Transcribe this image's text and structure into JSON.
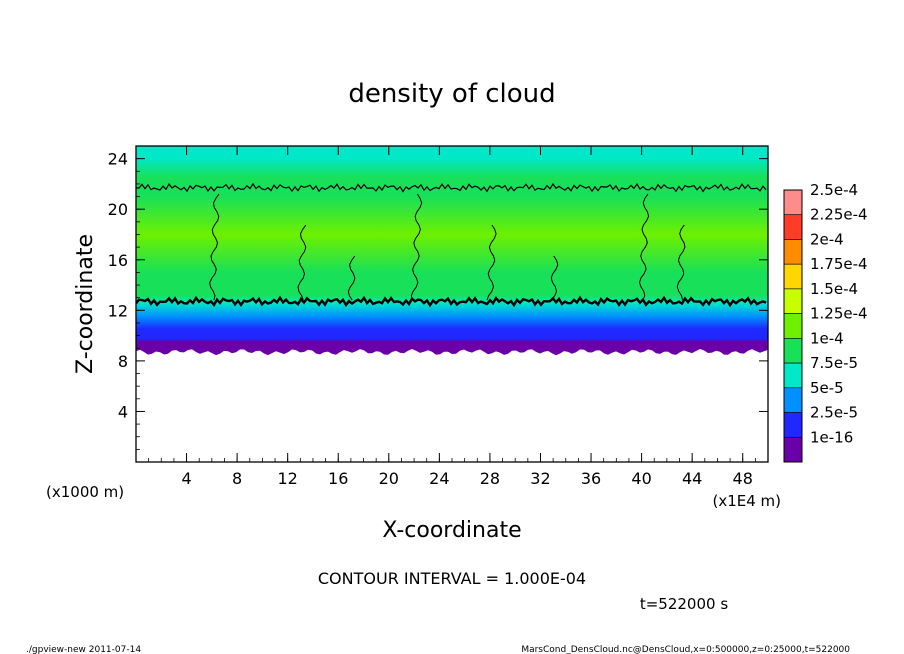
{
  "chart_data": {
    "type": "heatmap",
    "title": "density of cloud",
    "xlabel": "X-coordinate",
    "ylabel": "Z-coordinate",
    "x_unit": "(x1E4 m)",
    "y_unit": "(x1000 m)",
    "xlim": [
      0,
      50
    ],
    "ylim": [
      0,
      25
    ],
    "x_ticks": [
      "4",
      "8",
      "12",
      "16",
      "20",
      "24",
      "28",
      "32",
      "36",
      "40",
      "44",
      "48"
    ],
    "y_ticks": [
      "4",
      "8",
      "12",
      "16",
      "20",
      "24"
    ],
    "colorbar": {
      "labels": [
        "2.5e-4",
        "2.25e-4",
        "2e-4",
        "1.75e-4",
        "1.5e-4",
        "1.25e-4",
        "1e-4",
        "7.5e-5",
        "5e-5",
        "2.5e-5",
        "1e-16"
      ],
      "colors": [
        "#ff8c8c",
        "#ff3c28",
        "#ff8c00",
        "#ffd700",
        "#c8ff00",
        "#6ef000",
        "#18e058",
        "#00e8c8",
        "#0090ff",
        "#1e28ff",
        "#6a00a8"
      ]
    },
    "profile": [
      {
        "z": 25.0,
        "level": 7.5e-05
      },
      {
        "z": 24.0,
        "level": 8e-05
      },
      {
        "z": 22.5,
        "level": 9e-05
      },
      {
        "z": 21.0,
        "level": 0.000105
      },
      {
        "z": 18.0,
        "level": 0.000115
      },
      {
        "z": 15.0,
        "level": 0.00011
      },
      {
        "z": 13.2,
        "level": 9.5e-05
      },
      {
        "z": 12.6,
        "level": 8e-05
      },
      {
        "z": 11.5,
        "level": 6e-05
      },
      {
        "z": 10.5,
        "level": 3.5e-05
      },
      {
        "z": 9.8,
        "level": 1.5e-05
      },
      {
        "z": 9.2,
        "level": 1e-16
      },
      {
        "z": 8.7,
        "level": 0
      }
    ],
    "contour_lines_z": [
      21.7,
      12.7
    ],
    "cloud_base_z": 8.7
  },
  "annotation": "CONTOUR INTERVAL = 1.000E-04",
  "time_label": "t=522000 s",
  "footer": {
    "left": "./gpview-new   2011-07-14",
    "right": "MarsCond_DensCloud.nc@DensCloud,x=0:500000,z=0:25000,t=522000"
  }
}
